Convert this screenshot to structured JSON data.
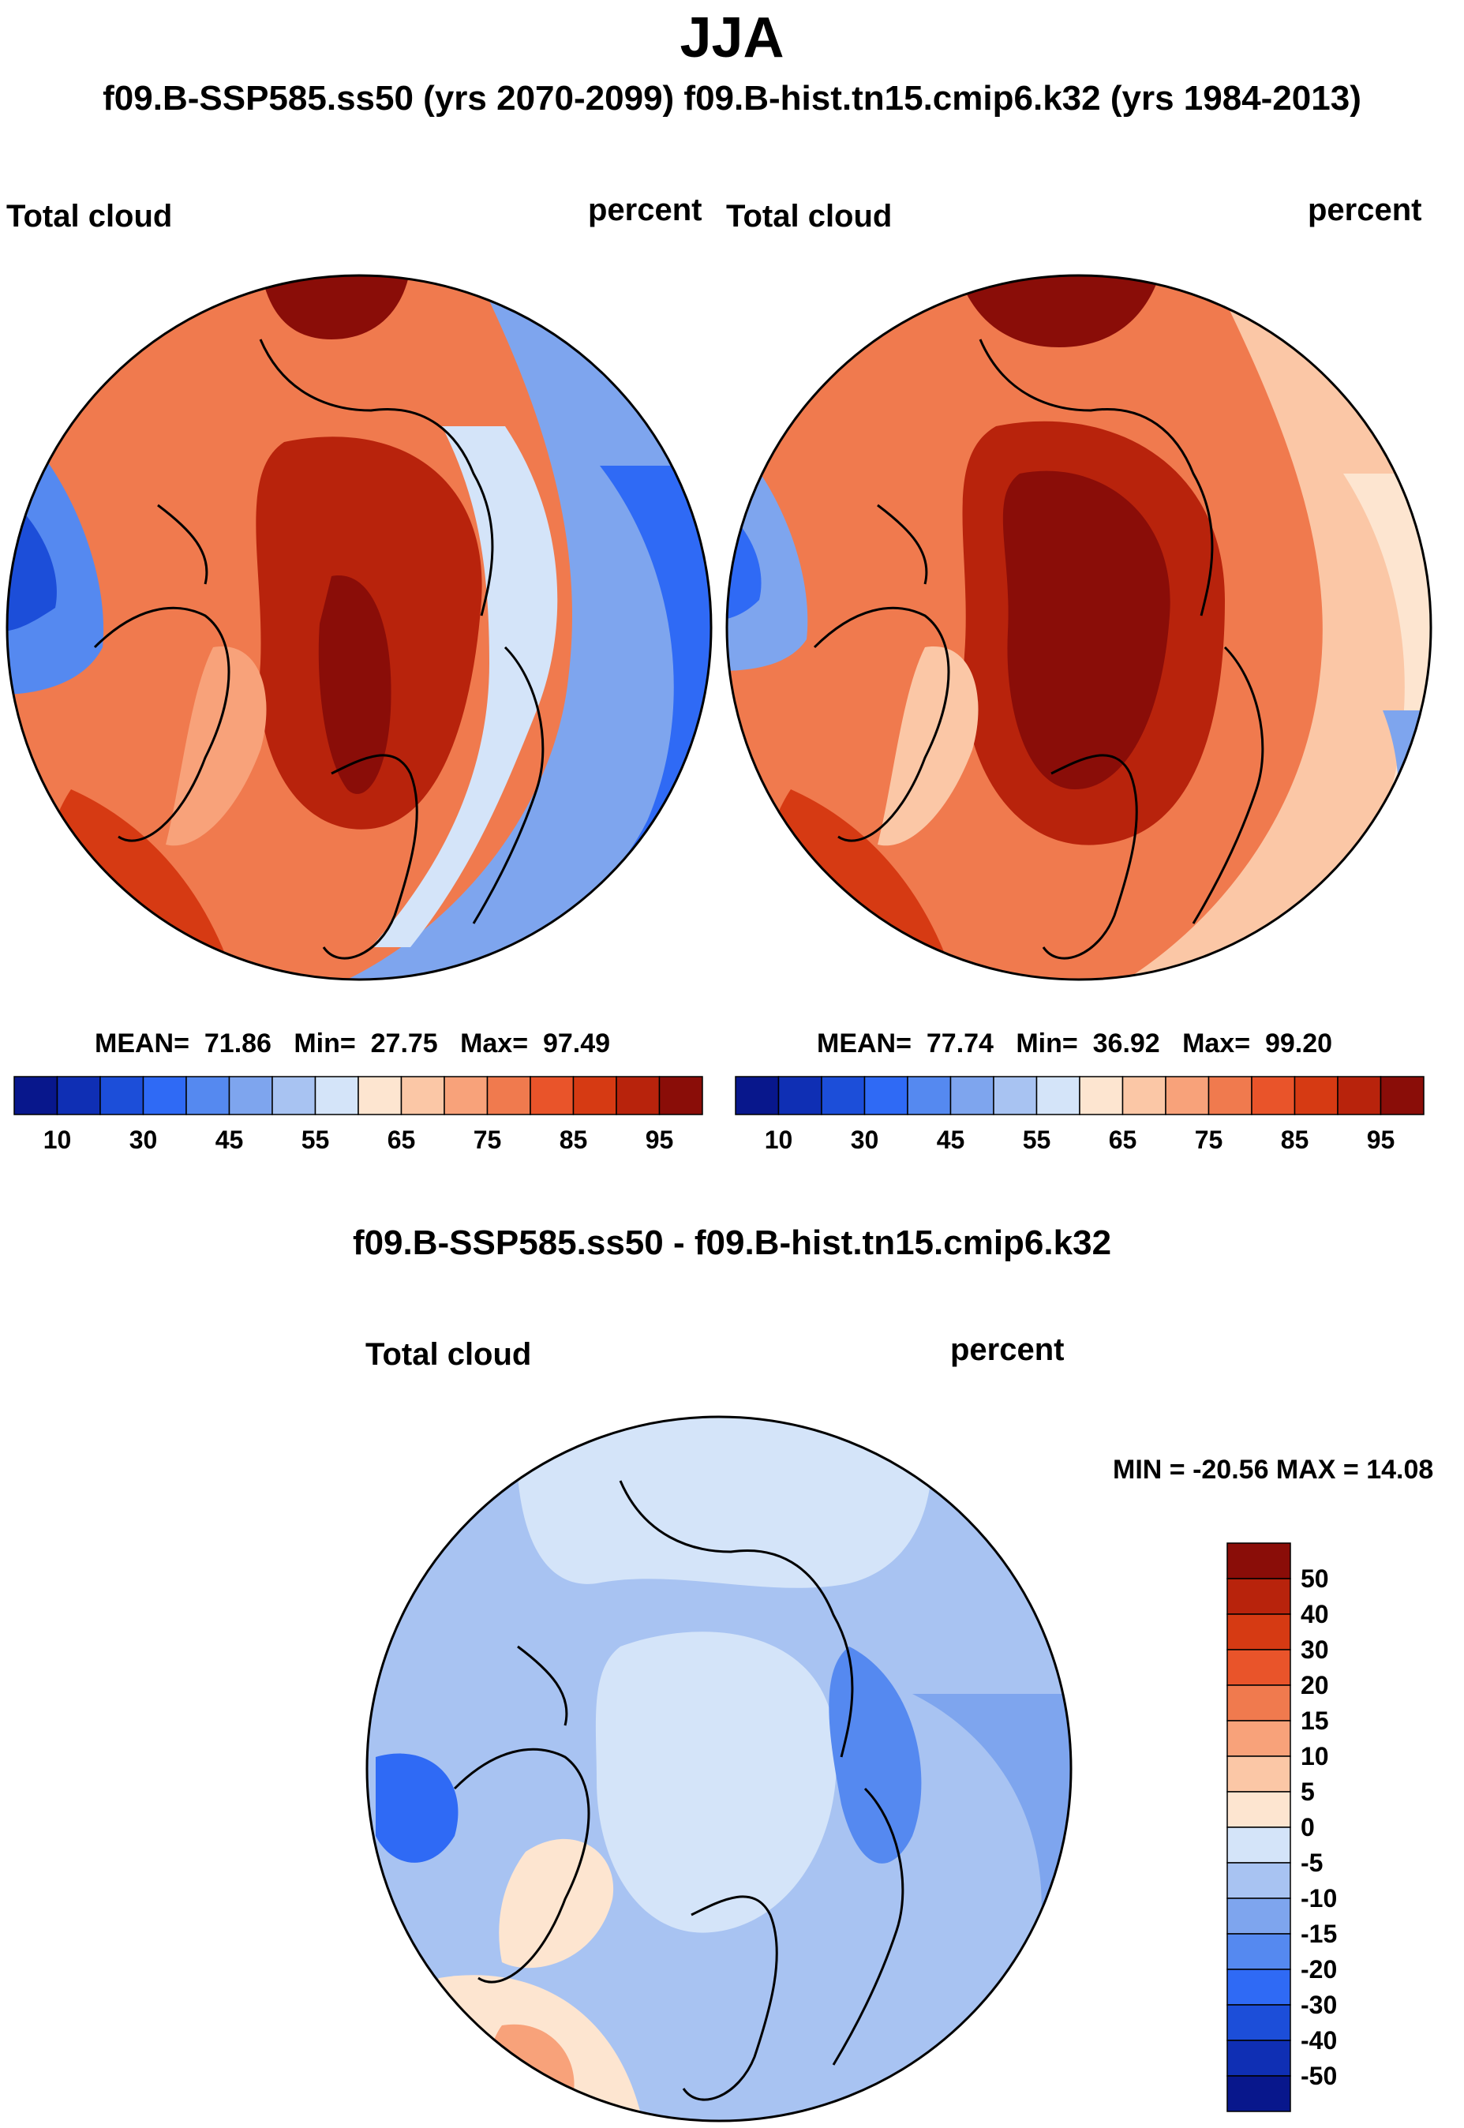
{
  "title": "JJA",
  "subtitle": "f09.B-SSP585.ss50 (yrs 2070-2099)  f09.B-hist.tn15.cmip6.k32 (yrs 1984-2013)",
  "colors": {
    "abs_scale": [
      "#08178c",
      "#0f2fb4",
      "#1c4ed9",
      "#2f6af5",
      "#5589f0",
      "#7ea5ee",
      "#a8c3f2",
      "#d4e4f9",
      "#fde5d0",
      "#fbc7a6",
      "#f8a27a",
      "#f07a4e",
      "#e9542a",
      "#d63a13",
      "#b8230c",
      "#8a0d08"
    ],
    "diff_scale": [
      "#8a0d08",
      "#b8230c",
      "#d63a13",
      "#e9542a",
      "#f07a4e",
      "#f8a27a",
      "#fbc7a6",
      "#fde5d0",
      "#d4e4f9",
      "#a8c3f2",
      "#7ea5ee",
      "#5589f0",
      "#2f6af5",
      "#1c4ed9",
      "#0f2fb4",
      "#08178c"
    ]
  },
  "chart_data": [
    {
      "type": "heatmap",
      "projection": "north polar stereographic",
      "variable_label": "Total cloud",
      "units_label": "percent",
      "stats": {
        "mean_label": "MEAN=",
        "mean": "71.86",
        "min_label": "Min=",
        "min": "27.75",
        "max_label": "Max=",
        "max": "97.49"
      },
      "colorbar_ticks": [
        "10",
        "30",
        "45",
        "55",
        "65",
        "75",
        "85",
        "95"
      ]
    },
    {
      "type": "heatmap",
      "projection": "north polar stereographic",
      "variable_label": "Total cloud",
      "units_label": "percent",
      "stats": {
        "mean_label": "MEAN=",
        "mean": "77.74",
        "min_label": "Min=",
        "min": "36.92",
        "max_label": "Max=",
        "max": "99.20"
      },
      "colorbar_ticks": [
        "10",
        "30",
        "45",
        "55",
        "65",
        "75",
        "85",
        "95"
      ]
    },
    {
      "type": "heatmap",
      "projection": "north polar stereographic",
      "title": "f09.B-SSP585.ss50 - f09.B-hist.tn15.cmip6.k32",
      "variable_label": "Total cloud",
      "units_label": "percent",
      "minmax_text": "MIN = -20.56 MAX =  14.08",
      "colorbar_ticks": [
        "50",
        "40",
        "30",
        "20",
        "15",
        "10",
        "5",
        "0",
        "-5",
        "-10",
        "-15",
        "-20",
        "-30",
        "-40",
        "-50"
      ]
    }
  ]
}
